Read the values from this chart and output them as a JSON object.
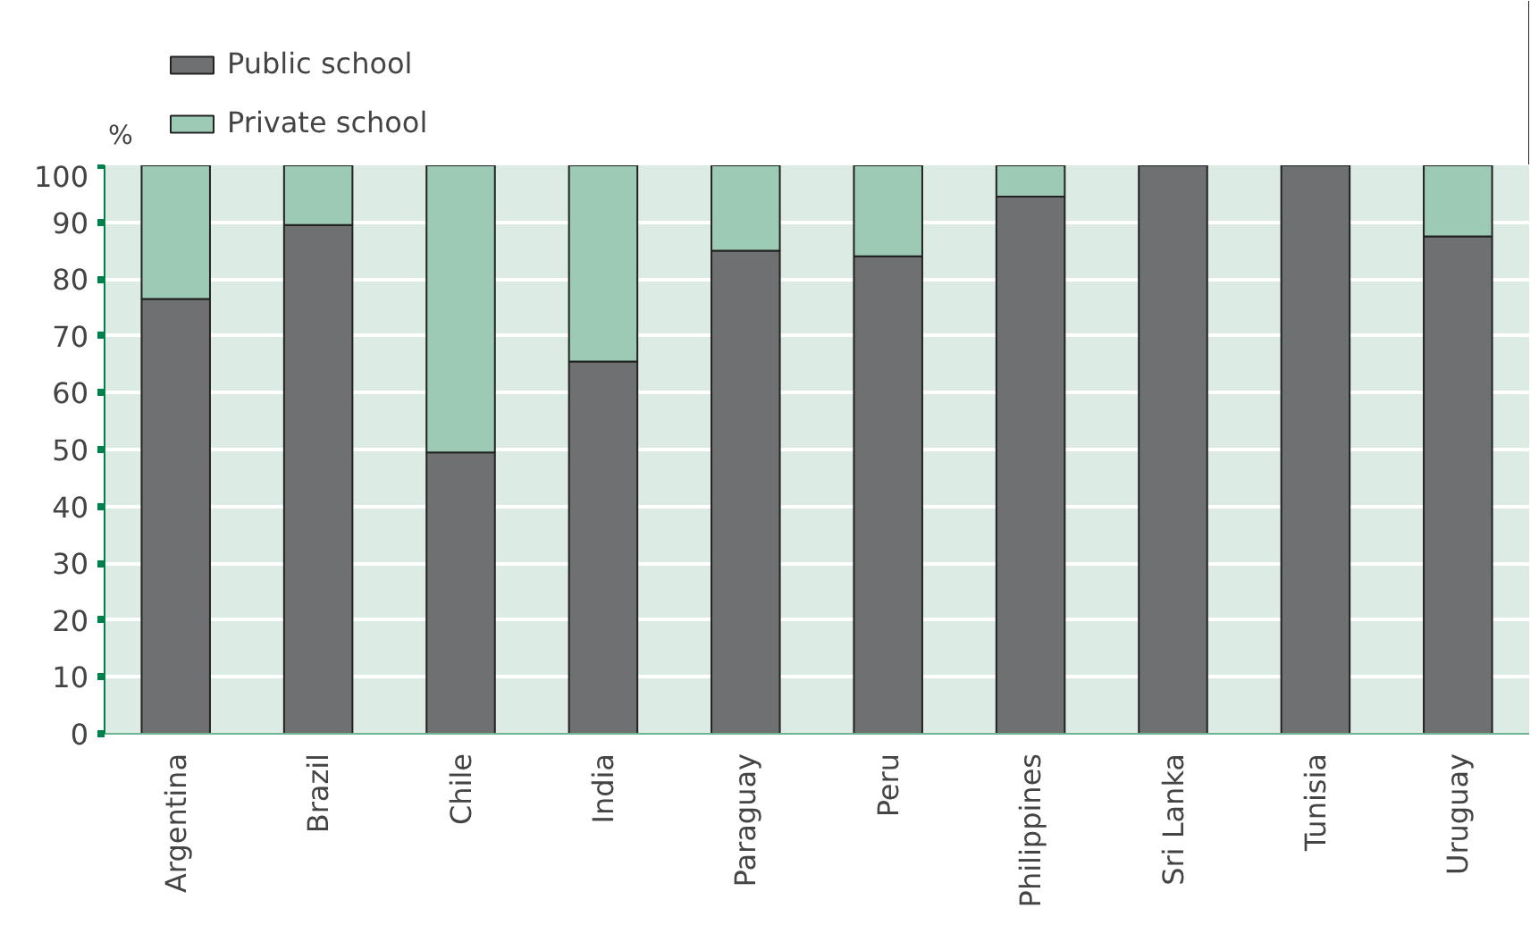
{
  "chart_data": {
    "type": "bar",
    "stacked": true,
    "ylabel": "%",
    "categories": [
      "Argentina",
      "Brazil",
      "Chile",
      "India",
      "Paraguay",
      "Peru",
      "Philippines",
      "Sri Lanka",
      "Tunisia",
      "Uruguay"
    ],
    "series": [
      {
        "name": "Public school",
        "color": "#6f7072",
        "values": [
          76.5,
          89.5,
          49.5,
          65.5,
          85,
          84,
          94.5,
          100,
          100,
          87.5
        ]
      },
      {
        "name": "Private school",
        "color": "#9ccab5",
        "values": [
          23.5,
          10.5,
          50.5,
          34.5,
          15,
          16,
          5.5,
          0,
          0,
          12.5
        ]
      }
    ],
    "ylim": [
      0,
      100
    ],
    "yticks": [
      0,
      10,
      20,
      30,
      40,
      50,
      60,
      70,
      80,
      90,
      100
    ],
    "grid": "y",
    "legend": "top left"
  }
}
